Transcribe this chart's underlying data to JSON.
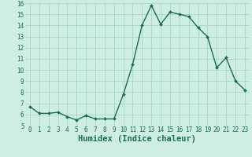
{
  "x": [
    0,
    1,
    2,
    3,
    4,
    5,
    6,
    7,
    8,
    9,
    10,
    11,
    12,
    13,
    14,
    15,
    16,
    17,
    18,
    19,
    20,
    21,
    22,
    23
  ],
  "y": [
    6.7,
    6.1,
    6.1,
    6.2,
    5.8,
    5.5,
    5.9,
    5.6,
    5.6,
    5.6,
    7.8,
    10.5,
    14.0,
    15.8,
    14.1,
    15.2,
    15.0,
    14.8,
    13.8,
    13.0,
    10.2,
    11.1,
    9.0,
    8.2
  ],
  "line_color": "#1a6b5a",
  "marker": "D",
  "marker_size": 2.0,
  "background_color": "#ceeee4",
  "grid_color": "#aed8cc",
  "xlabel": "Humidex (Indice chaleur)",
  "ylim": [
    5,
    16
  ],
  "xlim": [
    -0.5,
    23.5
  ],
  "yticks": [
    5,
    6,
    7,
    8,
    9,
    10,
    11,
    12,
    13,
    14,
    15,
    16
  ],
  "xticks": [
    0,
    1,
    2,
    3,
    4,
    5,
    6,
    7,
    8,
    9,
    10,
    11,
    12,
    13,
    14,
    15,
    16,
    17,
    18,
    19,
    20,
    21,
    22,
    23
  ],
  "tick_fontsize": 5.5,
  "xlabel_fontsize": 7.5,
  "line_width": 1.0
}
